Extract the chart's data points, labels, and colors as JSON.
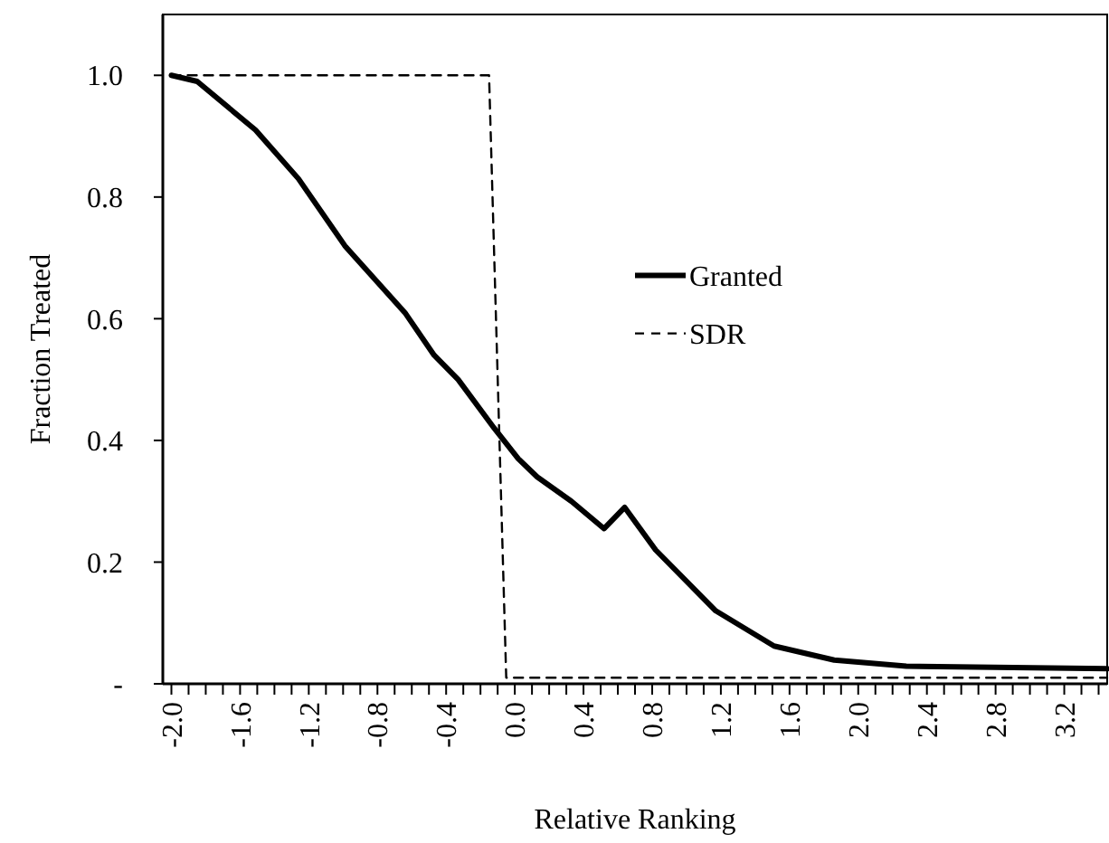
{
  "chart_data": {
    "type": "line",
    "xlabel": "Relative Ranking",
    "ylabel": "Fraction Treated",
    "xlim": [
      -2.05,
      3.45
    ],
    "ylim": [
      0,
      1.1
    ],
    "xticks": [
      {
        "value": -2.0,
        "label": "-2.0"
      },
      {
        "value": -1.9,
        "label": null
      },
      {
        "value": -1.8,
        "label": null
      },
      {
        "value": -1.7,
        "label": null
      },
      {
        "value": -1.6,
        "label": "-1.6"
      },
      {
        "value": -1.5,
        "label": null
      },
      {
        "value": -1.4,
        "label": null
      },
      {
        "value": -1.3,
        "label": null
      },
      {
        "value": -1.2,
        "label": "-1.2"
      },
      {
        "value": -1.1,
        "label": null
      },
      {
        "value": -1.0,
        "label": null
      },
      {
        "value": -0.9,
        "label": null
      },
      {
        "value": -0.8,
        "label": "-0.8"
      },
      {
        "value": -0.7,
        "label": null
      },
      {
        "value": -0.6,
        "label": null
      },
      {
        "value": -0.5,
        "label": null
      },
      {
        "value": -0.4,
        "label": "-0.4"
      },
      {
        "value": -0.3,
        "label": null
      },
      {
        "value": -0.2,
        "label": null
      },
      {
        "value": -0.1,
        "label": null
      },
      {
        "value": 0,
        "label": "0.0"
      },
      {
        "value": 0.1,
        "label": null
      },
      {
        "value": 0.2,
        "label": null
      },
      {
        "value": 0.3,
        "label": null
      },
      0.4,
      {
        "value": 0.5,
        "label": null
      },
      {
        "value": 0.6,
        "label": null
      },
      {
        "value": 0.7,
        "label": null
      },
      0.8,
      {
        "value": 0.9,
        "label": null
      },
      {
        "value": 1.0,
        "label": null
      },
      {
        "value": 1.1,
        "label": null
      },
      1.2,
      {
        "value": 1.3,
        "label": null
      },
      {
        "value": 1.4,
        "label": null
      },
      {
        "value": 1.5,
        "label": null
      },
      1.6,
      {
        "value": 1.7,
        "label": null
      },
      {
        "value": 1.8,
        "label": null
      },
      {
        "value": 1.9,
        "label": null
      },
      {
        "value": 2.0,
        "label": "2.0"
      },
      {
        "value": 2.1,
        "label": null
      },
      {
        "value": 2.2,
        "label": null
      },
      {
        "value": 2.3,
        "label": null
      },
      2.4,
      {
        "value": 2.5,
        "label": null
      },
      {
        "value": 2.6,
        "label": null
      },
      {
        "value": 2.7,
        "label": null
      },
      2.8,
      {
        "value": 2.9,
        "label": null
      },
      {
        "value": 3.0,
        "label": null
      },
      {
        "value": 3.1,
        "label": null
      },
      3.2,
      {
        "value": 3.3,
        "label": null
      },
      {
        "value": 3.4,
        "label": null
      }
    ],
    "yticks": [
      {
        "value": 0,
        "label": "-"
      },
      0.2,
      0.4,
      0.6,
      0.8,
      {
        "value": 1.0,
        "label": "1.0"
      }
    ],
    "grid": false,
    "legend": "right",
    "marker": "none",
    "series": [
      {
        "name": "Granted",
        "color": "#000000",
        "line_style": "solid",
        "x": [
          -2.0,
          -1.85,
          -1.51,
          -1.26,
          -0.99,
          -0.64,
          -0.47,
          -0.33,
          -0.12,
          0.02,
          0.13,
          0.33,
          0.52,
          0.64,
          0.82,
          1.17,
          1.51,
          1.86,
          2.28,
          3.45
        ],
        "values": [
          1.0,
          0.99,
          0.91,
          0.83,
          0.72,
          0.61,
          0.54,
          0.5,
          0.42,
          0.37,
          0.34,
          0.3,
          0.255,
          0.29,
          0.22,
          0.12,
          0.062,
          0.039,
          0.029,
          0.025
        ]
      },
      {
        "name": "SDR",
        "color": "#000000",
        "line_style": "dashed",
        "x": [
          -2.0,
          -0.15,
          -0.05,
          3.45
        ],
        "values": [
          1.0,
          1.0,
          0.01,
          0.01
        ]
      }
    ]
  }
}
